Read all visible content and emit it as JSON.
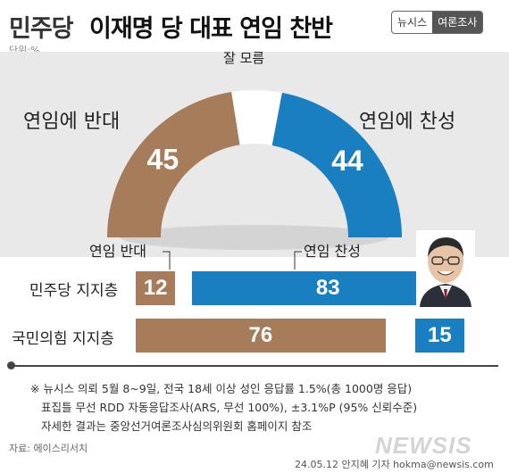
{
  "title": {
    "prefix": "민주당",
    "main": "이재명 당 대표 연임 찬반"
  },
  "brand": {
    "part1": "뉴시스",
    "part2": "여론조사"
  },
  "unit": "단위:%",
  "chart_data": [
    {
      "type": "pie",
      "variant": "half-donut",
      "categories": [
        "연임에 반대",
        "잘 모름",
        "연임에 찬성"
      ],
      "values": [
        45,
        11,
        44
      ],
      "colors": [
        "#a67c5b",
        "#ffffff",
        "#1a7fc1"
      ]
    },
    {
      "type": "bar",
      "orientation": "horizontal",
      "stacked": true,
      "categories": [
        "민주당 지지층",
        "국민의힘 지지층"
      ],
      "series": [
        {
          "name": "연임 반대",
          "values": [
            12,
            76
          ],
          "color": "#a67c5b"
        },
        {
          "name": "잘 모름",
          "values": [
            5,
            9
          ],
          "color": "#ffffff"
        },
        {
          "name": "연임 찬성",
          "values": [
            83,
            15
          ],
          "color": "#1a7fc1"
        }
      ]
    }
  ],
  "footnotes": [
    "※ 뉴시스 의뢰 5월 8~9일, 전국 18세 이상 성인 응답률 1.5%(총 1000명 응답)",
    "표집틀 무선 RDD 자동응답조사(ARS, 무선 100%), ±3.1%P (95% 신뢰수준)",
    "자세한 결과는 중앙선거여론조사심의위원회 홈페이지 참조"
  ],
  "source": "자료: 에이스리서치",
  "credit": "24.05.12 안지혜 기자 hokma@newsis.com",
  "watermark": "NEWSIS"
}
